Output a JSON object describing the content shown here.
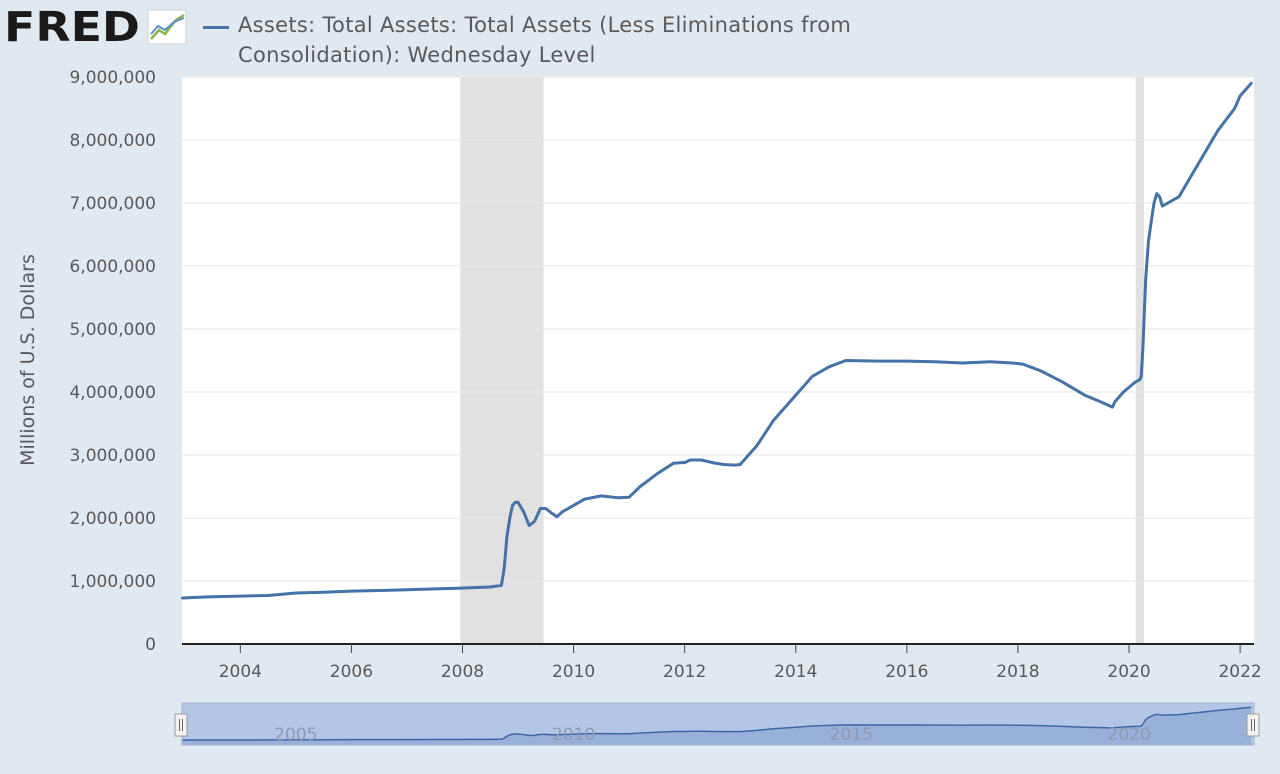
{
  "brand": {
    "name": "FRED"
  },
  "colors": {
    "series": "#4572a7",
    "recession": "#e1e1e1",
    "background": "#e1e9f0",
    "plot": "#ffffff",
    "navigator": "#b4c6e6"
  },
  "chart_data": {
    "type": "line",
    "title": "",
    "ylabel": "Millions of U.S. Dollars",
    "xlabel": "",
    "xlim": [
      2002.95,
      2022.25
    ],
    "ylim": [
      0,
      9000000
    ],
    "grid": true,
    "legend_position": "top",
    "y_ticks": [
      {
        "value": 0,
        "label": "0"
      },
      {
        "value": 1000000,
        "label": "1,000,000"
      },
      {
        "value": 2000000,
        "label": "2,000,000"
      },
      {
        "value": 3000000,
        "label": "3,000,000"
      },
      {
        "value": 4000000,
        "label": "4,000,000"
      },
      {
        "value": 5000000,
        "label": "5,000,000"
      },
      {
        "value": 6000000,
        "label": "6,000,000"
      },
      {
        "value": 7000000,
        "label": "7,000,000"
      },
      {
        "value": 8000000,
        "label": "8,000,000"
      },
      {
        "value": 9000000,
        "label": "9,000,000"
      }
    ],
    "x_ticks": [
      {
        "value": 2004,
        "label": "2004"
      },
      {
        "value": 2006,
        "label": "2006"
      },
      {
        "value": 2008,
        "label": "2008"
      },
      {
        "value": 2010,
        "label": "2010"
      },
      {
        "value": 2012,
        "label": "2012"
      },
      {
        "value": 2014,
        "label": "2014"
      },
      {
        "value": 2016,
        "label": "2016"
      },
      {
        "value": 2018,
        "label": "2018"
      },
      {
        "value": 2020,
        "label": "2020"
      },
      {
        "value": 2022,
        "label": "2022"
      }
    ],
    "recessions": [
      {
        "start": 2007.96,
        "end": 2009.46
      },
      {
        "start": 2020.12,
        "end": 2020.27
      }
    ],
    "navigator_ticks": [
      {
        "value": 2005,
        "label": "2005"
      },
      {
        "value": 2010,
        "label": "2010"
      },
      {
        "value": 2015,
        "label": "2015"
      },
      {
        "value": 2020,
        "label": "2020"
      }
    ],
    "series": [
      {
        "name": "Assets: Total Assets: Total Assets (Less Eliminations from Consolidation): Wednesday Level",
        "x": [
          2002.96,
          2003.2,
          2003.5,
          2004.0,
          2004.5,
          2005.0,
          2005.5,
          2006.0,
          2006.5,
          2007.0,
          2007.5,
          2007.9,
          2008.2,
          2008.5,
          2008.7,
          2008.75,
          2008.8,
          2008.85,
          2008.9,
          2008.95,
          2009.0,
          2009.1,
          2009.2,
          2009.3,
          2009.4,
          2009.5,
          2009.6,
          2009.7,
          2009.8,
          2010.0,
          2010.2,
          2010.5,
          2010.8,
          2011.0,
          2011.2,
          2011.5,
          2011.8,
          2011.95,
          2012.0,
          2012.1,
          2012.3,
          2012.5,
          2012.7,
          2012.9,
          2013.0,
          2013.3,
          2013.6,
          2014.0,
          2014.3,
          2014.6,
          2014.9,
          2015.5,
          2016.0,
          2016.5,
          2017.0,
          2017.5,
          2017.9,
          2018.1,
          2018.4,
          2018.8,
          2019.2,
          2019.5,
          2019.7,
          2019.75,
          2019.9,
          2020.1,
          2020.2,
          2020.22,
          2020.25,
          2020.3,
          2020.35,
          2020.4,
          2020.45,
          2020.5,
          2020.55,
          2020.6,
          2020.7,
          2020.9,
          2021.1,
          2021.3,
          2021.6,
          2021.9,
          2022.0,
          2022.1,
          2022.2
        ],
        "values": [
          730000,
          740000,
          750000,
          760000,
          770000,
          810000,
          820000,
          840000,
          850000,
          860000,
          875000,
          885000,
          895000,
          905000,
          930000,
          1200000,
          1700000,
          1990000,
          2200000,
          2250000,
          2250000,
          2100000,
          1880000,
          1950000,
          2150000,
          2150000,
          2080000,
          2020000,
          2100000,
          2200000,
          2300000,
          2350000,
          2320000,
          2330000,
          2500000,
          2700000,
          2870000,
          2880000,
          2880000,
          2920000,
          2920000,
          2880000,
          2850000,
          2840000,
          2850000,
          3150000,
          3550000,
          3950000,
          4250000,
          4400000,
          4500000,
          4490000,
          4490000,
          4480000,
          4460000,
          4480000,
          4460000,
          4440000,
          4340000,
          4160000,
          3950000,
          3840000,
          3760000,
          3850000,
          4000000,
          4150000,
          4200000,
          4250000,
          4700000,
          5800000,
          6400000,
          6700000,
          7000000,
          7150000,
          7100000,
          6950000,
          7000000,
          7100000,
          7400000,
          7700000,
          8150000,
          8500000,
          8700000,
          8800000,
          8900000
        ]
      }
    ]
  }
}
